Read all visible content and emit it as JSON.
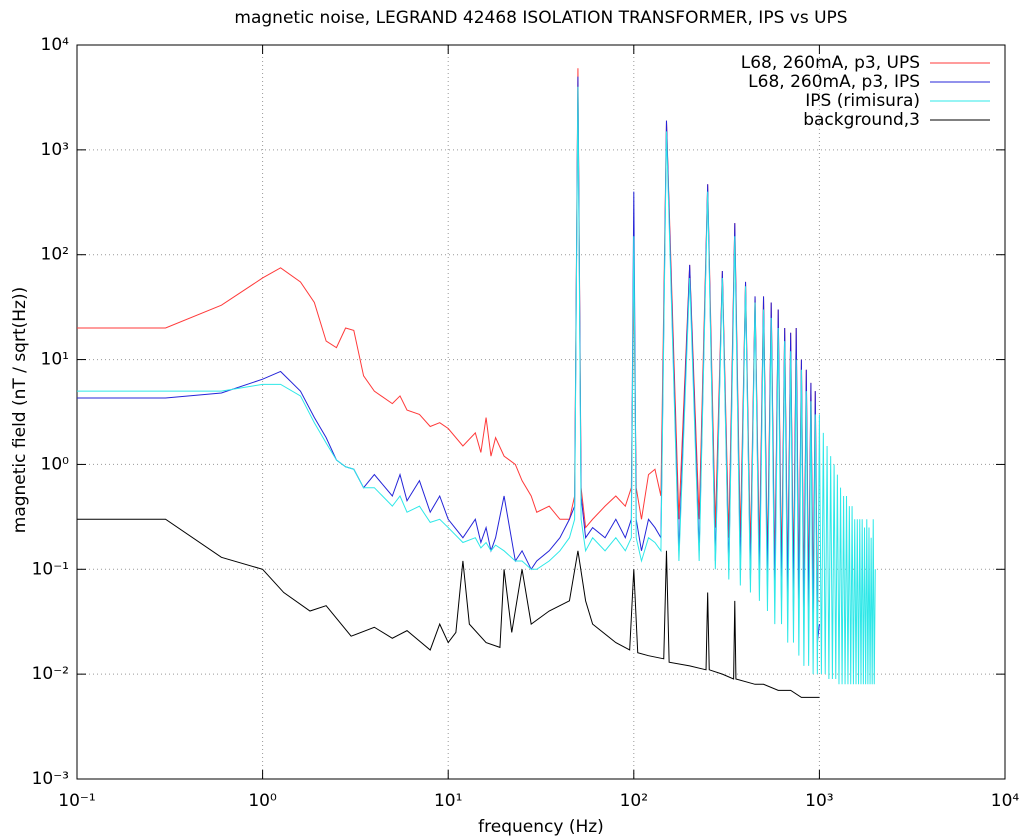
{
  "chart_data": {
    "type": "line",
    "title": "magnetic noise, LEGRAND 42468 ISOLATION TRANSFORMER, IPS vs UPS",
    "x_label": "frequency (Hz)",
    "y_label": "magnetic field (nT / sqrt(Hz))",
    "log_x": true,
    "log_y": true,
    "grid": true,
    "legend": "top-right",
    "xlim": [
      0.1,
      10000
    ],
    "ylim": [
      0.001,
      10000
    ],
    "xticks": [
      {
        "value": 0.1,
        "label": "10⁻¹"
      },
      {
        "value": 1,
        "label": "10⁰"
      },
      {
        "value": 10,
        "label": "10¹"
      },
      {
        "value": 100,
        "label": "10²"
      },
      {
        "value": 1000,
        "label": "10³"
      },
      {
        "value": 10000,
        "label": "10⁴"
      }
    ],
    "yticks": [
      {
        "value": 0.001,
        "label": "10⁻³"
      },
      {
        "value": 0.01,
        "label": "10⁻²"
      },
      {
        "value": 0.1,
        "label": "10⁻¹"
      },
      {
        "value": 1,
        "label": "10⁰"
      },
      {
        "value": 10,
        "label": "10¹"
      },
      {
        "value": 100,
        "label": "10²"
      },
      {
        "value": 1000,
        "label": "10³"
      },
      {
        "value": 10000,
        "label": "10⁴"
      }
    ],
    "series": [
      {
        "name": "L68, 260mA, p3, UPS",
        "color": "#ff3a3a",
        "x": [
          0.1,
          0.3,
          0.6,
          1,
          1.25,
          1.6,
          1.9,
          2.2,
          2.5,
          2.8,
          3.1,
          3.5,
          4,
          5,
          5.5,
          6,
          7,
          8,
          9,
          10,
          12,
          14,
          15,
          16,
          17,
          18,
          20,
          23,
          25,
          28,
          30,
          35,
          40,
          45,
          48,
          50,
          52,
          55,
          60,
          70,
          80,
          90,
          97,
          100,
          103,
          110,
          120,
          130,
          140,
          150,
          175,
          200,
          225,
          250,
          275,
          300,
          325,
          350,
          375,
          400,
          425,
          450,
          475,
          500,
          525,
          550,
          575,
          600,
          625,
          650,
          675,
          700,
          725,
          750,
          775,
          800,
          825,
          850,
          875,
          900,
          925,
          950,
          975,
          1000
        ],
        "values": [
          20,
          20,
          33,
          60,
          75,
          55,
          35,
          15,
          13,
          20,
          19,
          7,
          5,
          3.8,
          4.5,
          3.3,
          3,
          2.3,
          2.5,
          2.2,
          1.5,
          2,
          1.3,
          2.8,
          1.2,
          1.8,
          1.2,
          1,
          0.7,
          0.5,
          0.35,
          0.4,
          0.3,
          0.3,
          0.5,
          6000,
          0.6,
          0.25,
          0.3,
          0.4,
          0.5,
          0.4,
          0.6,
          50,
          0.6,
          0.3,
          0.8,
          0.9,
          0.5,
          1900,
          0.3,
          80,
          0.3,
          470,
          0.25,
          70,
          0.2,
          200,
          0.2,
          55,
          0.15,
          40,
          0.15,
          40,
          0.12,
          35,
          0.1,
          30,
          0.1,
          20,
          0.08,
          18,
          0.08,
          20,
          0.07,
          10,
          0.06,
          8,
          0.06,
          6,
          0.05,
          5,
          0.05,
          0.05
        ]
      },
      {
        "name": "L68, 260mA, p3, IPS",
        "color": "#2424d8",
        "x": [
          0.1,
          0.3,
          0.6,
          1,
          1.25,
          1.6,
          1.9,
          2.2,
          2.5,
          2.8,
          3.1,
          3.5,
          4,
          5,
          5.5,
          6,
          7,
          8,
          9,
          10,
          12,
          14,
          15,
          16,
          17,
          18,
          20,
          23,
          25,
          28,
          30,
          35,
          40,
          45,
          48,
          50,
          52,
          55,
          60,
          70,
          80,
          90,
          97,
          100,
          103,
          110,
          120,
          130,
          140,
          150,
          175,
          200,
          225,
          250,
          275,
          300,
          325,
          350,
          375,
          400,
          425,
          450,
          475,
          500,
          525,
          550,
          575,
          600,
          625,
          650,
          675,
          700,
          725,
          750,
          775,
          800,
          825,
          850,
          875,
          900,
          925,
          950,
          975,
          1000
        ],
        "values": [
          4.3,
          4.3,
          4.8,
          6.5,
          7.7,
          5,
          2.8,
          1.8,
          1.1,
          0.95,
          0.9,
          0.6,
          0.8,
          0.5,
          0.8,
          0.45,
          0.7,
          0.35,
          0.5,
          0.3,
          0.2,
          0.3,
          0.18,
          0.25,
          0.15,
          0.2,
          0.5,
          0.12,
          0.15,
          0.1,
          0.12,
          0.15,
          0.2,
          0.3,
          0.4,
          5000,
          0.5,
          0.2,
          0.25,
          0.2,
          0.3,
          0.2,
          0.3,
          400,
          0.3,
          0.15,
          0.3,
          0.25,
          0.2,
          1900,
          0.15,
          80,
          0.15,
          470,
          0.12,
          70,
          0.1,
          200,
          0.1,
          55,
          0.08,
          40,
          0.08,
          40,
          0.07,
          35,
          0.06,
          30,
          0.05,
          20,
          0.05,
          18,
          0.04,
          20,
          0.04,
          10,
          0.03,
          8,
          0.03,
          6,
          0.025,
          5,
          0.02,
          0.03
        ]
      },
      {
        "name": "IPS (rimisura)",
        "color": "#2ee8e8",
        "x": [
          0.1,
          0.3,
          0.6,
          1,
          1.25,
          1.6,
          1.9,
          2.2,
          2.5,
          2.8,
          3.1,
          3.5,
          4,
          5,
          5.5,
          6,
          7,
          8,
          9,
          10,
          12,
          14,
          15,
          16,
          17,
          18,
          20,
          23,
          25,
          28,
          30,
          35,
          40,
          45,
          48,
          50,
          52,
          55,
          60,
          70,
          80,
          90,
          97,
          100,
          103,
          110,
          120,
          130,
          140,
          150,
          175,
          200,
          225,
          250,
          275,
          300,
          325,
          350,
          375,
          400,
          425,
          450,
          475,
          500,
          525,
          550,
          575,
          600,
          625,
          650,
          675,
          700,
          725,
          750,
          775,
          800,
          825,
          850,
          875,
          900,
          925,
          950,
          975,
          1000,
          1025,
          1050,
          1075,
          1100,
          1125,
          1150,
          1175,
          1200,
          1225,
          1250,
          1275,
          1300,
          1325,
          1350,
          1375,
          1400,
          1425,
          1450,
          1475,
          1500,
          1525,
          1550,
          1575,
          1600,
          1625,
          1650,
          1675,
          1700,
          1725,
          1750,
          1775,
          1800,
          1825,
          1850,
          1875,
          1900,
          1925,
          1950,
          1975,
          2000
        ],
        "values": [
          5,
          5,
          5,
          5.8,
          5.8,
          4.5,
          2.5,
          1.6,
          1.1,
          0.95,
          0.9,
          0.6,
          0.6,
          0.4,
          0.5,
          0.35,
          0.4,
          0.28,
          0.3,
          0.25,
          0.18,
          0.2,
          0.16,
          0.18,
          0.15,
          0.17,
          0.15,
          0.12,
          0.12,
          0.1,
          0.1,
          0.12,
          0.15,
          0.2,
          0.3,
          4000,
          0.3,
          0.15,
          0.2,
          0.15,
          0.2,
          0.15,
          0.2,
          150,
          0.2,
          0.12,
          0.2,
          0.18,
          0.15,
          1500,
          0.12,
          60,
          0.12,
          400,
          0.1,
          60,
          0.08,
          150,
          0.07,
          50,
          0.06,
          35,
          0.05,
          30,
          0.04,
          25,
          0.03,
          20,
          0.03,
          15,
          0.02,
          12,
          0.02,
          10,
          0.015,
          8,
          0.012,
          5,
          0.012,
          4,
          0.01,
          3,
          0.01,
          3,
          0.01,
          2,
          0.01,
          1.5,
          0.009,
          1.2,
          0.009,
          1,
          0.009,
          0.8,
          0.008,
          0.6,
          0.008,
          0.5,
          0.008,
          0.5,
          0.008,
          0.4,
          0.008,
          0.4,
          0.008,
          0.3,
          0.008,
          0.3,
          0.008,
          0.3,
          0.008,
          0.3,
          0.008,
          0.25,
          0.008,
          0.3,
          0.008,
          0.25,
          0.008,
          0.2,
          0.008,
          0.3,
          0.008,
          0.1
        ]
      },
      {
        "name": "background,3",
        "color": "#000000",
        "x": [
          0.1,
          0.3,
          0.6,
          1,
          1.3,
          1.8,
          2.2,
          3,
          4,
          5,
          6,
          8,
          9,
          10,
          11,
          12,
          13,
          16,
          19,
          20,
          22,
          25,
          28,
          35,
          45,
          50,
          55,
          60,
          80,
          95,
          100,
          105,
          120,
          145,
          150,
          155,
          200,
          245,
          250,
          255,
          300,
          345,
          350,
          355,
          450,
          500,
          600,
          700,
          800,
          1000
        ],
        "values": [
          0.3,
          0.3,
          0.13,
          0.1,
          0.06,
          0.04,
          0.045,
          0.023,
          0.028,
          0.022,
          0.026,
          0.017,
          0.03,
          0.02,
          0.025,
          0.12,
          0.03,
          0.02,
          0.018,
          0.1,
          0.025,
          0.1,
          0.03,
          0.04,
          0.05,
          0.15,
          0.05,
          0.03,
          0.02,
          0.017,
          0.1,
          0.016,
          0.015,
          0.014,
          0.15,
          0.013,
          0.012,
          0.011,
          0.06,
          0.011,
          0.01,
          0.009,
          0.05,
          0.009,
          0.008,
          0.008,
          0.007,
          0.007,
          0.006,
          0.006
        ]
      }
    ]
  }
}
